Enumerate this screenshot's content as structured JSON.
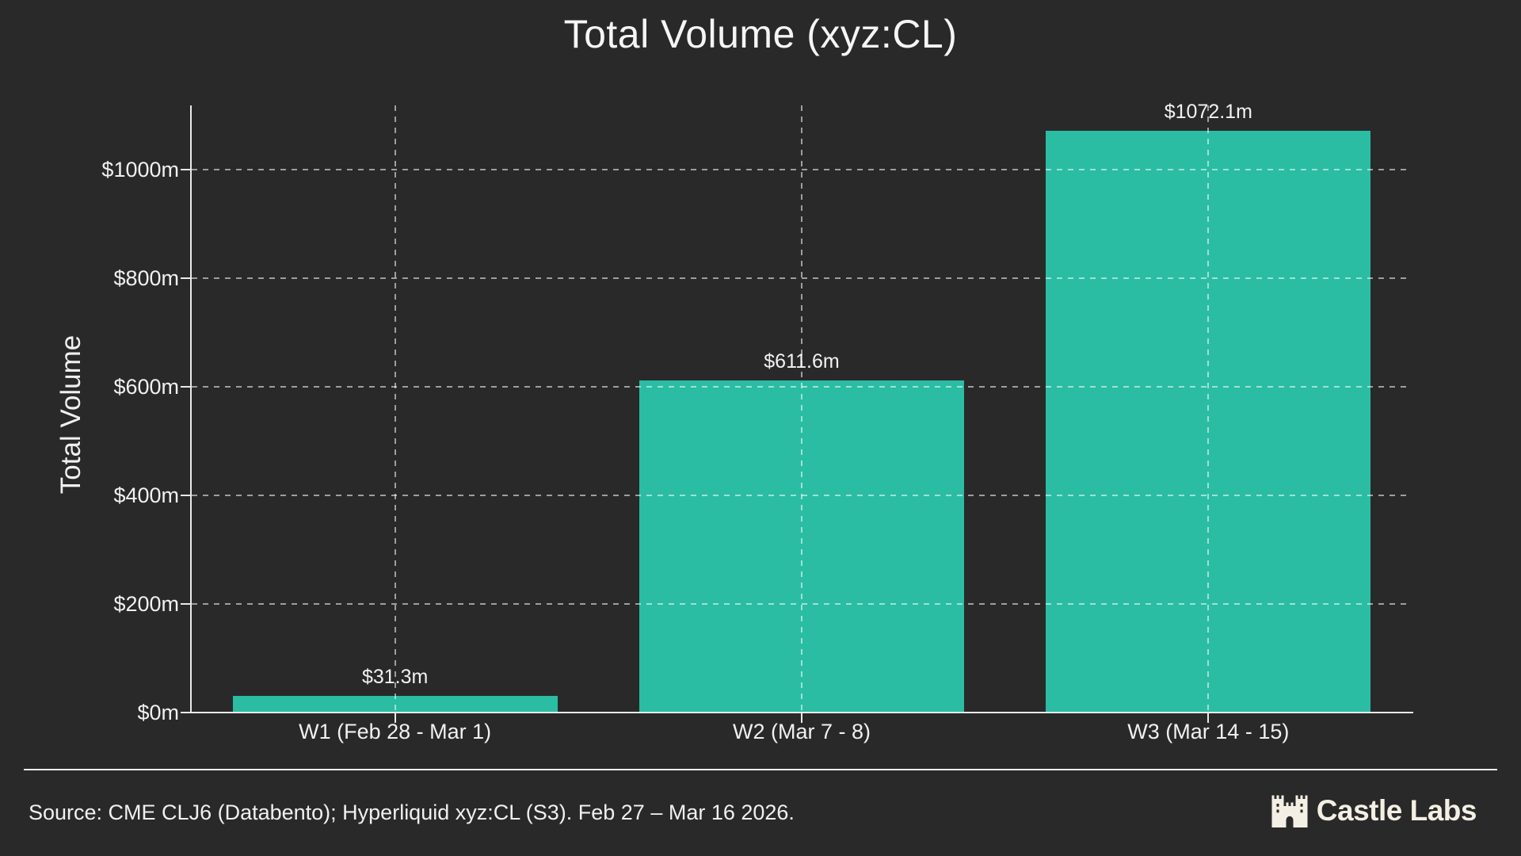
{
  "title": "Total Volume (xyz:CL)",
  "chart_data": {
    "type": "bar",
    "title": "Total Volume (xyz:CL)",
    "xlabel": "",
    "ylabel": "Total Volume",
    "categories": [
      "W1 (Feb 28 - Mar 1)",
      "W2 (Mar 7 - 8)",
      "W3 (Mar 14 - 15)"
    ],
    "values": [
      31.3,
      611.6,
      1072.1
    ],
    "value_labels": [
      "$31.3m",
      "$611.6m",
      "$1072.1m"
    ],
    "y_ticks": [
      0,
      200,
      400,
      600,
      800,
      1000
    ],
    "y_tick_labels": [
      "$0m",
      "$200m",
      "$400m",
      "$600m",
      "$800m",
      "$1000m"
    ],
    "ylim": [
      0,
      1118
    ],
    "grid": true,
    "legend": "none",
    "bar_color": "#2abda3"
  },
  "footer": {
    "source": "Source: CME CLJ6 (Databento); Hyperliquid xyz:CL (S3). Feb 27 – Mar 16 2026.",
    "brand": "Castle Labs",
    "brand_icon": "castle-icon"
  },
  "colors": {
    "background": "#292929",
    "bar": "#2abda3",
    "text": "#f0f0f0",
    "axis": "#e9e9e9",
    "brand_text": "#f3efe4"
  }
}
